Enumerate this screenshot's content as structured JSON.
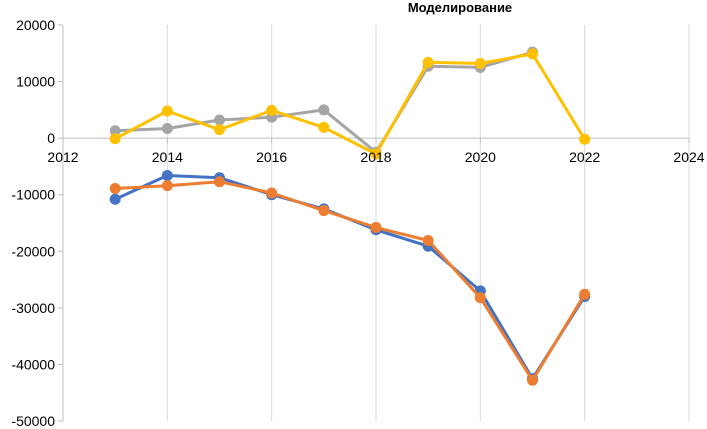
{
  "chart_data": {
    "type": "line",
    "title": "Моделирование",
    "xlabel": "",
    "ylabel": "",
    "xlim": [
      2012,
      2024
    ],
    "ylim": [
      -50000,
      20000
    ],
    "x_ticks": [
      2012,
      2014,
      2016,
      2018,
      2020,
      2022,
      2024
    ],
    "y_ticks": [
      20000,
      10000,
      0,
      -10000,
      -20000,
      -30000,
      -40000,
      -50000
    ],
    "x_tick_labels": [
      "2012",
      "2014",
      "2016",
      "2018",
      "2020",
      "2022",
      "2024"
    ],
    "y_tick_labels": [
      "20000",
      "10000",
      "0",
      "-10000",
      "-20000",
      "-30000",
      "-40000",
      "-50000"
    ],
    "grid": "vertical",
    "legend": "none",
    "series": [
      {
        "color": "#4472C4",
        "x": [
          2013,
          2014,
          2015,
          2016,
          2017,
          2018,
          2019,
          2020,
          2021,
          2022
        ],
        "values": [
          -10800,
          -6600,
          -7000,
          -10000,
          -12500,
          -16200,
          -19100,
          -27000,
          -42500,
          -28000
        ]
      },
      {
        "color": "#ED7D31",
        "x": [
          2013,
          2014,
          2015,
          2016,
          2017,
          2018,
          2019,
          2020,
          2021,
          2022
        ],
        "values": [
          -8900,
          -8400,
          -7700,
          -9700,
          -12800,
          -15800,
          -18100,
          -28200,
          -42800,
          -27600
        ]
      },
      {
        "color": "#A5A5A5",
        "x": [
          2013,
          2014,
          2015,
          2016,
          2017,
          2018,
          2019,
          2020,
          2021
        ],
        "values": [
          1300,
          1700,
          3200,
          3700,
          5000,
          -2500,
          12700,
          12500,
          15200
        ]
      },
      {
        "color": "#FFC000",
        "x": [
          2013,
          2014,
          2015,
          2016,
          2017,
          2018,
          2019,
          2020,
          2021,
          2022
        ],
        "values": [
          -100,
          4800,
          1500,
          4900,
          1900,
          -2800,
          13400,
          13200,
          14900,
          -200
        ]
      }
    ]
  }
}
